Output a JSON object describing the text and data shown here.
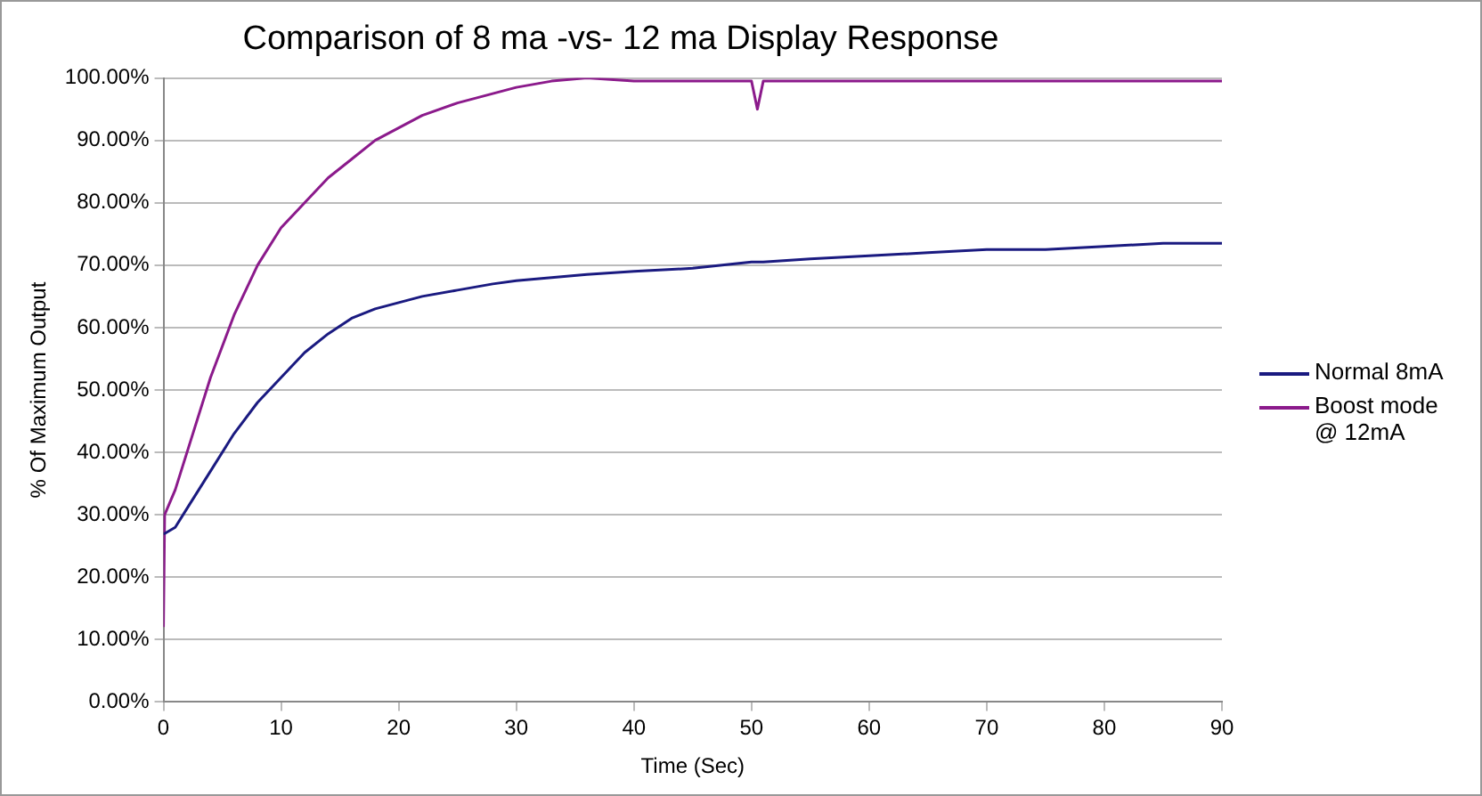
{
  "chart_data": {
    "type": "line",
    "title": "Comparison of 8 ma -vs- 12 ma Display Response",
    "xlabel": "Time (Sec)",
    "ylabel": "% Of Maximum Output",
    "x": [
      0,
      0.1,
      1,
      2,
      4,
      6,
      8,
      10,
      12,
      14,
      16,
      18,
      20,
      22,
      25,
      28,
      30,
      33,
      36,
      40,
      45,
      50,
      50.5,
      51,
      55,
      60,
      65,
      70,
      75,
      80,
      85,
      90
    ],
    "series": [
      {
        "name": "Normal 8mA",
        "color": "#1a1a80",
        "values": [
          27,
          27,
          28,
          31,
          37,
          43,
          48,
          52,
          56,
          59,
          61.5,
          63,
          64,
          65,
          66,
          67,
          67.5,
          68,
          68.5,
          69,
          69.5,
          70.5,
          70.5,
          70.5,
          71,
          71.5,
          72,
          72.5,
          72.5,
          73,
          73.5,
          73.5
        ]
      },
      {
        "name": "Boost mode @ 12mA",
        "color": "#8b1a8b",
        "values": [
          12,
          30,
          34,
          40,
          52,
          62,
          70,
          76,
          80,
          84,
          87,
          90,
          92,
          94,
          96,
          97.5,
          98.5,
          99.5,
          100,
          99.5,
          99.5,
          99.5,
          95,
          99.5,
          99.5,
          99.5,
          99.5,
          99.5,
          99.5,
          99.5,
          99.5,
          99.5
        ]
      }
    ],
    "xlim": [
      0,
      90
    ],
    "xticks": [
      0,
      10,
      20,
      30,
      40,
      50,
      60,
      70,
      80,
      90
    ],
    "ylim": [
      0,
      100
    ],
    "yticks": [
      {
        "value": 0,
        "label": "0.00%"
      },
      {
        "value": 10,
        "label": "10.00%"
      },
      {
        "value": 20,
        "label": "20.00%"
      },
      {
        "value": 30,
        "label": "30.00%"
      },
      {
        "value": 40,
        "label": "40.00%"
      },
      {
        "value": 50,
        "label": "50.00%"
      },
      {
        "value": 60,
        "label": "60.00%"
      },
      {
        "value": 70,
        "label": "70.00%"
      },
      {
        "value": 80,
        "label": "80.00%"
      },
      {
        "value": 90,
        "label": "90.00%"
      },
      {
        "value": 100,
        "label": "100.00%"
      }
    ],
    "grid": "y",
    "legend": "right",
    "marker": "none",
    "line_style": "solid"
  }
}
